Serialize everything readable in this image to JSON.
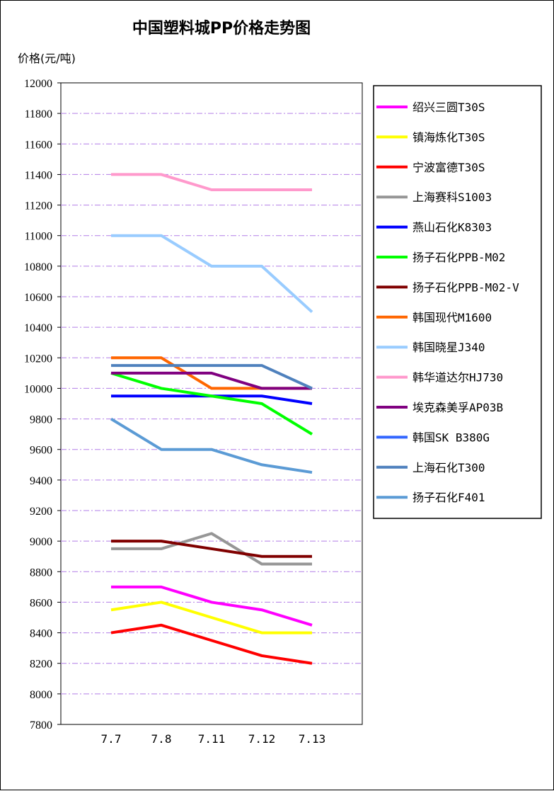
{
  "chart_data": {
    "type": "line",
    "title": "中国塑料城PP价格走势图",
    "ylabel": "价格(元/吨)",
    "xlabel": "",
    "categories": [
      "7.7",
      "7.8",
      "7.11",
      "7.12",
      "7.13"
    ],
    "ylim": [
      7800,
      12000
    ],
    "ytick_step": 200,
    "grid": true,
    "legend_position": "right",
    "series": [
      {
        "name": "绍兴三圆T30S",
        "color": "#ff00ff",
        "values": [
          8700,
          8700,
          8600,
          8550,
          8450
        ]
      },
      {
        "name": "镇海炼化T30S",
        "color": "#ffff00",
        "values": [
          8550,
          8600,
          8500,
          8400,
          8400
        ]
      },
      {
        "name": "宁波富德T30S",
        "color": "#ff0000",
        "values": [
          8400,
          8450,
          8350,
          8250,
          8200
        ]
      },
      {
        "name": "上海赛科S1003",
        "color": "#969696",
        "values": [
          8950,
          8950,
          9050,
          8850,
          8850
        ]
      },
      {
        "name": "燕山石化K8303",
        "color": "#0000ff",
        "values": [
          9950,
          9950,
          9950,
          9950,
          9900
        ]
      },
      {
        "name": "扬子石化PPB-M02",
        "color": "#00ff00",
        "values": [
          10100,
          10000,
          9950,
          9900,
          9700
        ]
      },
      {
        "name": "扬子石化PPB-M02-V",
        "color": "#800000",
        "values": [
          9000,
          9000,
          8950,
          8900,
          8900
        ]
      },
      {
        "name": "韩国现代M1600",
        "color": "#ff6600",
        "values": [
          10200,
          10200,
          10000,
          10000,
          10000
        ]
      },
      {
        "name": "韩国晓星J340",
        "color": "#99ccff",
        "values": [
          11000,
          11000,
          10800,
          10800,
          10500
        ]
      },
      {
        "name": "韩华道达尔HJ730",
        "color": "#ff99cc",
        "values": [
          11400,
          11400,
          11300,
          11300,
          11300
        ]
      },
      {
        "name": "埃克森美孚AP03B",
        "color": "#800080",
        "values": [
          10100,
          10100,
          10100,
          10000,
          10000
        ]
      },
      {
        "name": "韩国SK B380G",
        "color": "#3366ff",
        "values": [
          null,
          null,
          null,
          null,
          null
        ]
      },
      {
        "name": "上海石化T300",
        "color": "#4f81bd",
        "values": [
          10150,
          10150,
          10150,
          10150,
          10000
        ]
      },
      {
        "name": "扬子石化F401",
        "color": "#5b9bd5",
        "values": [
          9800,
          9600,
          9600,
          9500,
          9450
        ]
      }
    ]
  }
}
